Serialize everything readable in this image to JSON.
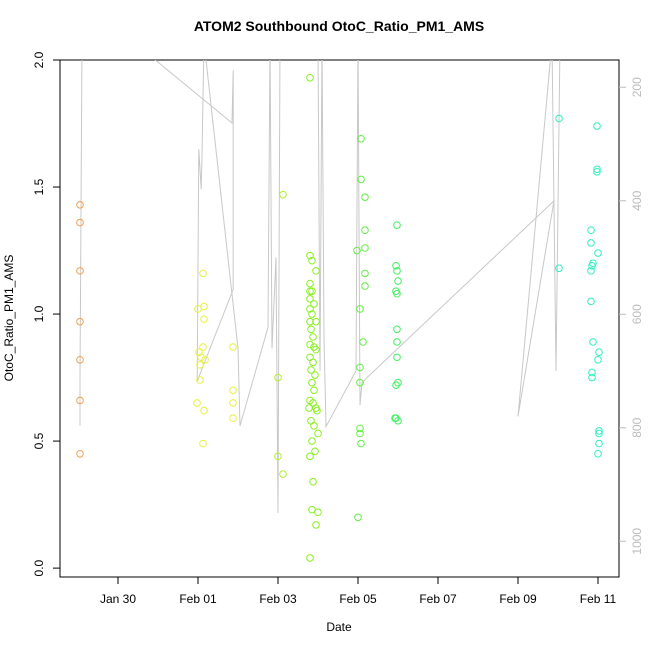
{
  "chart_data": {
    "type": "scatter",
    "title": "ATOM2 Southbound OtoC_Ratio_PM1_AMS",
    "x_label": "Date",
    "y_label": "OtoC_Ratio_PM1_AMS",
    "xlim": [
      28.55,
      42.525
    ],
    "xticks": [
      {
        "value": 30,
        "label": "Jan 30"
      },
      {
        "value": 32,
        "label": "Feb 01"
      },
      {
        "value": 34,
        "label": "Feb 03"
      },
      {
        "value": 36,
        "label": "Feb 05"
      },
      {
        "value": 38,
        "label": "Feb 07"
      },
      {
        "value": 40,
        "label": "Feb 09"
      },
      {
        "value": 42,
        "label": "Feb 11"
      }
    ],
    "ylim": [
      -0.035,
      2.0
    ],
    "yticks": [
      {
        "value": 0,
        "label": "0.0"
      },
      0.5,
      {
        "value": 1,
        "label": "1.0"
      },
      1.5,
      {
        "value": 2,
        "label": "2.0"
      }
    ],
    "y2lim": [
      1063,
      152
    ],
    "y2ticks": [
      200,
      400,
      600,
      800,
      1000
    ],
    "series": [
      {
        "type": "line",
        "axis": "y2",
        "color": "#c8c8c8",
        "x": [
          29.05,
          29.05,
          29.1,
          30.9,
          32.85,
          32.88,
          32.88,
          31.98,
          32.02,
          32.08,
          32.1,
          32.15,
          33.0,
          33.05,
          33.75,
          33.8,
          33.85,
          33.95,
          34.0,
          34.05,
          35.0,
          35.05,
          35.1,
          35.15,
          35.2,
          35.95,
          36.0,
          36.05,
          36.1,
          40.9,
          40.0,
          40.85,
          40.95,
          41.05
        ],
        "values": [
          796,
          716,
          120,
          150,
          263,
          170,
          556,
          718,
          309,
          380,
          320,
          120,
          660,
          797,
          623,
          120,
          660,
          500,
          950,
          120,
          120,
          700,
          120,
          640,
          798,
          700,
          120,
          760,
          720,
          400,
          780,
          120,
          700,
          120
        ]
      },
      {
        "color": "#f0a050",
        "x": [
          29.05,
          29.05,
          29.05,
          29.05,
          29.05,
          29.05,
          29.05
        ],
        "values": [
          1.43,
          1.36,
          1.17,
          0.97,
          0.82,
          0.66,
          0.45
        ]
      },
      {
        "color": "#e8f040",
        "x": [
          32.0,
          32.15,
          32.125,
          32.15,
          32.025,
          32.075,
          32.125,
          32.175,
          32.05,
          32.05,
          31.975,
          32.15,
          32.125,
          32.875,
          32.875,
          32.875,
          32.875
        ],
        "values": [
          1.02,
          1.03,
          1.16,
          0.98,
          0.85,
          0.83,
          0.87,
          0.82,
          0.8,
          0.74,
          0.65,
          0.62,
          0.49,
          0.87,
          0.7,
          0.65,
          0.59
        ]
      },
      {
        "color": "#b0f030",
        "x": [
          34.0,
          34.125,
          34.0,
          34.125
        ],
        "values": [
          0.75,
          1.47,
          0.44,
          0.37
        ]
      },
      {
        "color": "#88f020",
        "x": [
          34.8,
          34.8,
          34.85,
          34.95,
          34.8,
          34.85,
          34.8,
          34.9,
          34.8,
          34.85,
          34.8,
          34.95,
          34.825,
          34.875,
          34.8,
          34.9,
          34.95,
          34.8,
          34.875,
          34.825,
          34.925,
          34.85,
          34.9,
          34.8,
          34.875,
          34.775,
          34.95,
          34.825,
          34.9,
          35.0,
          34.85,
          34.925,
          34.8,
          34.875,
          34.85,
          35.0,
          34.95,
          34.8,
          34.8,
          34.975
        ],
        "values": [
          1.93,
          1.23,
          1.21,
          1.17,
          1.12,
          1.09,
          1.06,
          1.04,
          1.02,
          1.0,
          0.97,
          0.97,
          0.94,
          0.91,
          0.88,
          0.87,
          0.86,
          0.83,
          0.81,
          0.78,
          0.76,
          0.73,
          0.7,
          0.66,
          0.65,
          0.63,
          0.63,
          0.58,
          0.56,
          0.53,
          0.5,
          0.46,
          0.44,
          0.34,
          0.23,
          0.22,
          0.17,
          0.04,
          1.09,
          0.62
        ]
      },
      {
        "color": "#60f040",
        "x": [
          36.075,
          36.075,
          36.175,
          36.175,
          35.975,
          36.175,
          36.175,
          36.175,
          36.05,
          36.125,
          36.05,
          36.05,
          36.05,
          36.05,
          36.075,
          36.0
        ],
        "values": [
          1.69,
          1.53,
          1.46,
          1.33,
          1.25,
          1.26,
          1.16,
          1.11,
          1.02,
          0.89,
          0.79,
          0.73,
          0.55,
          0.53,
          0.49,
          0.2
        ]
      },
      {
        "color": "#40f060",
        "x": [
          36.975,
          36.95,
          36.975,
          37.0,
          36.95,
          36.975,
          36.975,
          36.975,
          36.975,
          36.95,
          37.0,
          36.925,
          37.0,
          36.95
        ],
        "values": [
          1.35,
          1.19,
          1.17,
          1.13,
          1.09,
          1.08,
          0.94,
          0.89,
          0.83,
          0.72,
          0.73,
          0.59,
          0.58,
          0.59
        ]
      },
      {
        "color": "#30f0c0",
        "x": [
          41.025,
          41.025,
          41.975,
          41.975,
          41.975,
          41.825,
          41.825,
          42.0,
          41.85,
          41.825,
          41.875,
          41.825,
          41.875,
          42.025,
          42.0,
          41.85,
          41.85,
          42.025,
          42.025,
          42.025,
          42.0
        ],
        "values": [
          1.77,
          1.18,
          1.74,
          1.57,
          1.56,
          1.33,
          1.28,
          1.24,
          1.19,
          1.17,
          1.2,
          1.05,
          0.89,
          0.85,
          0.82,
          0.77,
          0.75,
          0.54,
          0.53,
          0.49,
          0.45
        ]
      }
    ]
  }
}
